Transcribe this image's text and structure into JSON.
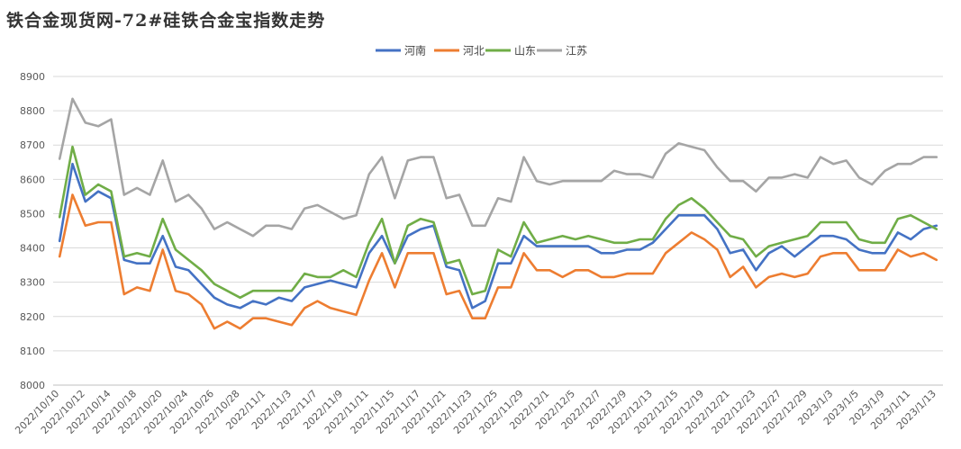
{
  "chart_data": {
    "type": "line",
    "title": "铁合金现货网-72#硅铁合金宝指数走势",
    "xlabel": "",
    "ylabel": "",
    "ylim": [
      8000,
      8900
    ],
    "yticks": [
      8000,
      8100,
      8200,
      8300,
      8400,
      8500,
      8600,
      8700,
      8800,
      8900
    ],
    "grid": "horizontal",
    "legend_position": "top",
    "x": [
      "2022/10/10",
      "2022/10/11",
      "2022/10/12",
      "2022/10/13",
      "2022/10/14",
      "2022/10/17",
      "2022/10/18",
      "2022/10/19",
      "2022/10/20",
      "2022/10/21",
      "2022/10/24",
      "2022/10/25",
      "2022/10/26",
      "2022/10/27",
      "2022/10/28",
      "2022/10/31",
      "2022/11/1",
      "2022/11/2",
      "2022/11/3",
      "2022/11/4",
      "2022/11/7",
      "2022/11/8",
      "2022/11/9",
      "2022/11/10",
      "2022/11/11",
      "2022/11/14",
      "2022/11/15",
      "2022/11/16",
      "2022/11/17",
      "2022/11/18",
      "2022/11/21",
      "2022/11/22",
      "2022/11/23",
      "2022/11/24",
      "2022/11/25",
      "2022/11/28",
      "2022/11/29",
      "2022/11/30",
      "2022/12/1",
      "2022/12/2",
      "2022/12/5",
      "2022/12/6",
      "2022/12/7",
      "2022/12/8",
      "2022/12/9",
      "2022/12/12",
      "2022/12/13",
      "2022/12/14",
      "2022/12/15",
      "2022/12/16",
      "2022/12/19",
      "2022/12/20",
      "2022/12/21",
      "2022/12/22",
      "2022/12/23",
      "2022/12/26",
      "2022/12/27",
      "2022/12/28",
      "2022/12/29",
      "2022/12/30",
      "2023/1/3",
      "2023/1/4",
      "2023/1/5",
      "2023/1/6",
      "2023/1/9",
      "2023/1/10",
      "2023/1/11",
      "2023/1/12",
      "2023/1/13"
    ],
    "xtick_labels": [
      "2022/10/10",
      "2022/10/12",
      "2022/10/14",
      "2022/10/18",
      "2022/10/20",
      "2022/10/24",
      "2022/10/26",
      "2022/10/28",
      "2022/11/1",
      "2022/11/3",
      "2022/11/7",
      "2022/11/9",
      "2022/11/11",
      "2022/11/15",
      "2022/11/17",
      "2022/11/21",
      "2022/11/23",
      "2022/11/25",
      "2022/11/29",
      "2022/12/1",
      "2022/12/5",
      "2022/12/7",
      "2022/12/9",
      "2022/12/13",
      "2022/12/15",
      "2022/12/19",
      "2022/12/21",
      "2022/12/23",
      "2022/12/27",
      "2022/12/29",
      "2023/1/3",
      "2023/1/5",
      "2023/1/9",
      "2023/1/11",
      "2023/1/13"
    ],
    "series": [
      {
        "name": "河南",
        "color": "#4472C4",
        "values": [
          8420,
          8645,
          8535,
          8565,
          8545,
          8365,
          8355,
          8355,
          8435,
          8345,
          8335,
          8295,
          8255,
          8235,
          8225,
          8245,
          8235,
          8255,
          8245,
          8285,
          8295,
          8305,
          8295,
          8285,
          8385,
          8435,
          8355,
          8435,
          8455,
          8465,
          8345,
          8335,
          8225,
          8245,
          8355,
          8355,
          8435,
          8405,
          8405,
          8405,
          8405,
          8405,
          8385,
          8385,
          8395,
          8395,
          8415,
          8455,
          8495,
          8495,
          8495,
          8455,
          8385,
          8395,
          8335,
          8385,
          8405,
          8375,
          8405,
          8435,
          8435,
          8425,
          8395,
          8385,
          8385,
          8445,
          8425,
          8455,
          8465
        ]
      },
      {
        "name": "河北",
        "color": "#ED7D31",
        "values": [
          8375,
          8555,
          8465,
          8475,
          8475,
          8265,
          8285,
          8275,
          8395,
          8275,
          8265,
          8235,
          8165,
          8185,
          8165,
          8195,
          8195,
          8185,
          8175,
          8225,
          8245,
          8225,
          8215,
          8205,
          8305,
          8385,
          8285,
          8385,
          8385,
          8385,
          8265,
          8275,
          8195,
          8195,
          8285,
          8285,
          8385,
          8335,
          8335,
          8315,
          8335,
          8335,
          8315,
          8315,
          8325,
          8325,
          8325,
          8385,
          8415,
          8445,
          8425,
          8395,
          8315,
          8345,
          8285,
          8315,
          8325,
          8315,
          8325,
          8375,
          8385,
          8385,
          8335,
          8335,
          8335,
          8395,
          8375,
          8385,
          8365
        ]
      },
      {
        "name": "山东",
        "color": "#70AD47",
        "values": [
          8490,
          8695,
          8555,
          8585,
          8565,
          8375,
          8385,
          8375,
          8485,
          8395,
          8365,
          8335,
          8295,
          8275,
          8255,
          8275,
          8275,
          8275,
          8275,
          8325,
          8315,
          8315,
          8335,
          8315,
          8415,
          8485,
          8355,
          8465,
          8485,
          8475,
          8355,
          8365,
          8265,
          8275,
          8395,
          8375,
          8475,
          8415,
          8425,
          8435,
          8425,
          8435,
          8425,
          8415,
          8415,
          8425,
          8425,
          8485,
          8525,
          8545,
          8515,
          8475,
          8435,
          8425,
          8375,
          8405,
          8415,
          8425,
          8435,
          8475,
          8475,
          8475,
          8425,
          8415,
          8415,
          8485,
          8495,
          8475,
          8455
        ]
      },
      {
        "name": "江苏",
        "color": "#A5A5A5",
        "values": [
          8660,
          8835,
          8765,
          8755,
          8775,
          8555,
          8575,
          8555,
          8655,
          8535,
          8555,
          8515,
          8455,
          8475,
          8455,
          8435,
          8465,
          8465,
          8455,
          8515,
          8525,
          8505,
          8485,
          8495,
          8615,
          8665,
          8545,
          8655,
          8665,
          8665,
          8545,
          8555,
          8465,
          8465,
          8545,
          8535,
          8665,
          8595,
          8585,
          8595,
          8595,
          8595,
          8595,
          8625,
          8615,
          8615,
          8605,
          8675,
          8705,
          8695,
          8685,
          8635,
          8595,
          8595,
          8565,
          8605,
          8605,
          8615,
          8605,
          8665,
          8645,
          8655,
          8605,
          8585,
          8625,
          8645,
          8645,
          8665,
          8665
        ]
      }
    ]
  }
}
